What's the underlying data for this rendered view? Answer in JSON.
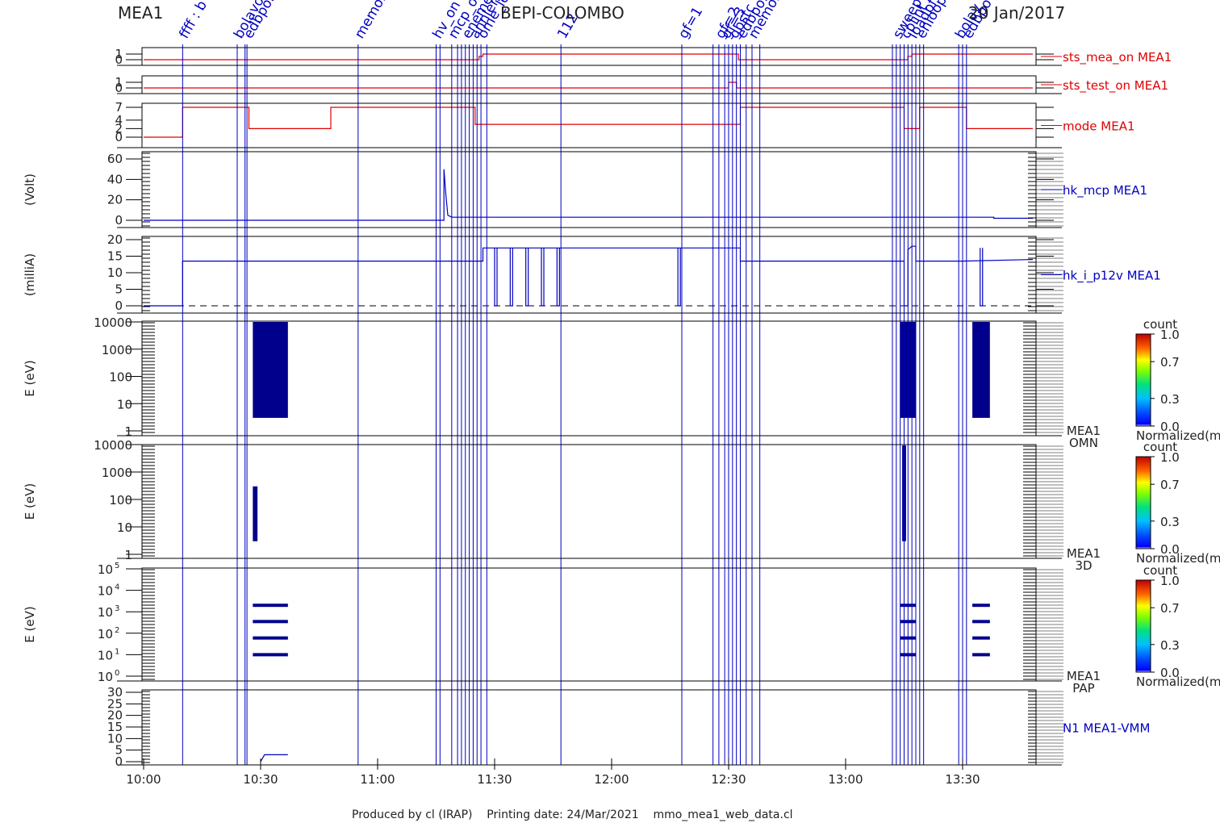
{
  "header": {
    "instrument": "MEA1",
    "mission": "BEPI-COLOMBO",
    "date": "20 Jan/2017"
  },
  "footer": {
    "text": "Produced by cl (IRAP)    Printing date: 24/Mar/2021    mmo_mea1_web_data.cl"
  },
  "colors": {
    "red": "#e00000",
    "blue": "#0000c0",
    "dark_blue": "#00008c",
    "black": "#000000"
  },
  "chart_data": {
    "type": "line",
    "time_axis": {
      "start": "10:00",
      "end": "13:50",
      "ticks": [
        "10:00",
        "10:30",
        "11:00",
        "11:30",
        "12:00",
        "12:30",
        "13:00",
        "13:30"
      ]
    },
    "events": {
      "times": [
        "10:10",
        "10:24",
        "10:26",
        "10:26.5",
        "10:55",
        "11:15",
        "11:16",
        "11:19",
        "11:20.5",
        "11:21.5",
        "11:22.5",
        "11:23.5",
        "11:24.5",
        "11:25.5",
        "11:26.5",
        "11:28",
        "11:47",
        "12:18",
        "12:26",
        "12:27.5",
        "12:29",
        "12:30",
        "12:31",
        "12:32",
        "12:33",
        "12:34.5",
        "12:36",
        "12:38",
        "13:12",
        "13:13",
        "13:14",
        "13:15",
        "13:16",
        "13:17",
        "13:18",
        "13:19",
        "13:20",
        "13:29",
        "13:30",
        "13:31"
      ],
      "labels": [
        {
          "time": "10:10",
          "text": "ffff : b"
        },
        {
          "time": "10:24",
          "text": "bolavol"
        },
        {
          "time": "10:26.5",
          "text": "edbpon"
        },
        {
          "time": "10:55",
          "text": "memor"
        },
        {
          "time": "11:15",
          "text": "hv_on"
        },
        {
          "time": "11:19",
          "text": "mcp_on"
        },
        {
          "time": "11:22.5",
          "text": "eneme"
        },
        {
          "time": "11:24.5",
          "text": "annlen"
        },
        {
          "time": "11:26.5",
          "text": "ome_lev"
        },
        {
          "time": "11:47",
          "text": "112"
        },
        {
          "time": "12:18",
          "text": "gf=1"
        },
        {
          "time": "12:27.5",
          "text": "gf=2"
        },
        {
          "time": "12:29",
          "text": "gf=3"
        },
        {
          "time": "12:31",
          "text": "gbstc"
        },
        {
          "time": "12:33",
          "text": "edbpof"
        },
        {
          "time": "12:36",
          "text": "memor"
        },
        {
          "time": "13:13",
          "text": "sweep"
        },
        {
          "time": "13:15",
          "text": "cplint"
        },
        {
          "time": "13:17",
          "text": "loadpf"
        },
        {
          "time": "13:19",
          "text": "enloop"
        },
        {
          "time": "13:29",
          "text": "bolav"
        },
        {
          "time": "13:31",
          "text": "edbpo"
        }
      ]
    },
    "panels": [
      {
        "name": "sts_mea_on MEA1",
        "ylim": [
          0,
          1
        ],
        "ticks": [
          "0",
          "1"
        ],
        "series": [
          {
            "name": "sts_mea_on MEA1",
            "color": "#e00000",
            "x": [
              "10:00",
              "11:26",
              "11:26",
              "11:27",
              "11:27",
              "12:32.5",
              "12:32.5",
              "13:16",
              "13:16",
              "13:17",
              "13:17",
              "13:48"
            ],
            "y": [
              0,
              0,
              0.6,
              0.6,
              1,
              1,
              0,
              0,
              0.6,
              0.6,
              1,
              1
            ]
          }
        ]
      },
      {
        "name": "sts_test_on MEA1",
        "ylim": [
          0,
          1
        ],
        "ticks": [
          "0",
          "1"
        ],
        "series": [
          {
            "name": "sts_test_on MEA1",
            "color": "#e00000",
            "x": [
              "10:00",
              "12:30",
              "12:30",
              "12:32",
              "12:32",
              "13:48"
            ],
            "y": [
              0,
              0,
              1,
              1,
              0,
              0
            ]
          }
        ]
      },
      {
        "name": "mode MEA1",
        "ylim": [
          0,
          7
        ],
        "ticks": [
          "0",
          "2",
          "4",
          "7"
        ],
        "series": [
          {
            "name": "mode MEA1",
            "color": "#e00000",
            "x": [
              "10:00",
              "10:10",
              "10:10",
              "10:27",
              "10:27",
              "10:48",
              "10:48",
              "11:25",
              "11:25",
              "12:33",
              "12:33",
              "13:15",
              "13:15",
              "13:19",
              "13:19",
              "13:31",
              "13:31",
              "13:48"
            ],
            "y": [
              0,
              0,
              7,
              7,
              2,
              2,
              7,
              7,
              3,
              3,
              7,
              7,
              2,
              2,
              7,
              7,
              2,
              2
            ]
          }
        ]
      },
      {
        "name": "hk_mcp MEA1",
        "unit": "(Volt)",
        "ylim": [
          -2,
          65
        ],
        "ticks": [
          "0",
          "20",
          "40",
          "60"
        ],
        "series": [
          {
            "name": "hk_mcp MEA1",
            "color": "#0000c0",
            "x": [
              "10:00",
              "11:17",
              "11:17",
              "11:17.5",
              "11:18",
              "11:19",
              "11:20",
              "11:25",
              "12:00",
              "12:30",
              "13:00",
              "13:30",
              "13:38",
              "13:38",
              "13:48"
            ],
            "y": [
              0,
              0,
              50,
              25,
              5,
              3,
              3,
              3,
              3,
              3,
              3,
              3,
              3,
              2,
              2
            ]
          }
        ]
      },
      {
        "name": "hk_i_p12v MEA1",
        "unit": "(milliA)",
        "ylim": [
          -1,
          21
        ],
        "ticks": [
          "0",
          "5",
          "10",
          "15",
          "20"
        ],
        "series": [
          {
            "name": "hk_i_p12v MEA1",
            "color": "#0000c0",
            "x": [
              "10:00",
              "10:10",
              "10:10",
              "10:30",
              "10:35",
              "10:40",
              "11:20",
              "11:27",
              "11:27",
              "12:33",
              "12:33",
              "13:15",
              "13:15",
              "13:16",
              "13:16",
              "13:17",
              "13:18",
              "13:18",
              "13:19",
              "13:30",
              "13:48"
            ],
            "y": [
              0,
              0,
              13.5,
              13.5,
              13.5,
              13.5,
              13.5,
              13.5,
              17.5,
              17.5,
              13.5,
              13.5,
              0,
              0,
              17,
              18,
              18,
              13.5,
              13.5,
              13.5,
              14
            ]
          }
        ],
        "dips": [
          "11:30",
          "11:34",
          "11:38",
          "11:42",
          "11:46",
          "12:17",
          "13:34.5"
        ],
        "reference_line": {
          "value": 0,
          "style": "dashed"
        }
      }
    ],
    "spectrograms": [
      {
        "name": "MEA1 OMN",
        "ylabel": "E (eV)",
        "ylim": [
          1,
          10000
        ],
        "scale": "log",
        "ticks": [
          "1",
          "10",
          "100",
          "1000",
          "10000"
        ],
        "blocks": [
          {
            "x0": "10:28",
            "x1": "10:37",
            "e0": 3,
            "e1": 10000
          },
          {
            "x0": "13:14",
            "x1": "13:18",
            "e0": 3,
            "e1": 10000
          },
          {
            "x0": "13:32.5",
            "x1": "13:37",
            "e0": 3,
            "e1": 10000
          }
        ],
        "colorbar": {
          "title": "count",
          "label": "Normalized(m",
          "ticks": [
            "0.0",
            "0.3",
            "0.7",
            "1.0"
          ]
        }
      },
      {
        "name": "MEA1 3D",
        "ylabel": "E (eV)",
        "ylim": [
          1,
          10000
        ],
        "scale": "log",
        "ticks": [
          "1",
          "10",
          "100",
          "1000",
          "10000"
        ],
        "blocks": [
          {
            "x0": "10:28",
            "x1": "10:29.2",
            "e0": 3,
            "e1": 300
          },
          {
            "x0": "13:14.5",
            "x1": "13:15.5",
            "e0": 3,
            "e1": 10000
          }
        ],
        "colorbar": {
          "title": "count",
          "label": "Normalized(m",
          "ticks": [
            "0.0",
            "0.3",
            "0.7",
            "1.0"
          ]
        }
      },
      {
        "name": "MEA1 PAP",
        "ylabel": "E (eV)",
        "ylim": [
          1,
          100000
        ],
        "scale": "log",
        "ticks": [
          "10",
          "10",
          "10",
          "10",
          "10",
          "10"
        ],
        "tick_exponents": [
          "0",
          "1",
          "2",
          "3",
          "4",
          "5"
        ],
        "bars": [
          {
            "x0": "10:28",
            "x1": "10:37",
            "e": [
              10,
              60,
              350,
              2000
            ]
          },
          {
            "x0": "13:14",
            "x1": "13:18",
            "e": [
              10,
              60,
              350,
              2000
            ]
          },
          {
            "x0": "13:32.5",
            "x1": "13:37",
            "e": [
              10,
              60,
              350,
              2000
            ]
          }
        ],
        "colorbar": {
          "title": "count",
          "label": "Normalized(m",
          "ticks": [
            "0.0",
            "0.3",
            "0.7",
            "1.0"
          ]
        }
      }
    ],
    "bottom_panel": {
      "name": "N1 MEA1-VMM",
      "ylim": [
        0,
        30
      ],
      "ticks": [
        "0",
        "5",
        "10",
        "15",
        "20",
        "25",
        "30"
      ],
      "series": [
        {
          "name": "N1 MEA1-VMM",
          "color": "#0000c0",
          "x": [
            "10:30",
            "10:31",
            "10:37"
          ],
          "y": [
            0,
            3,
            3
          ]
        }
      ]
    }
  }
}
